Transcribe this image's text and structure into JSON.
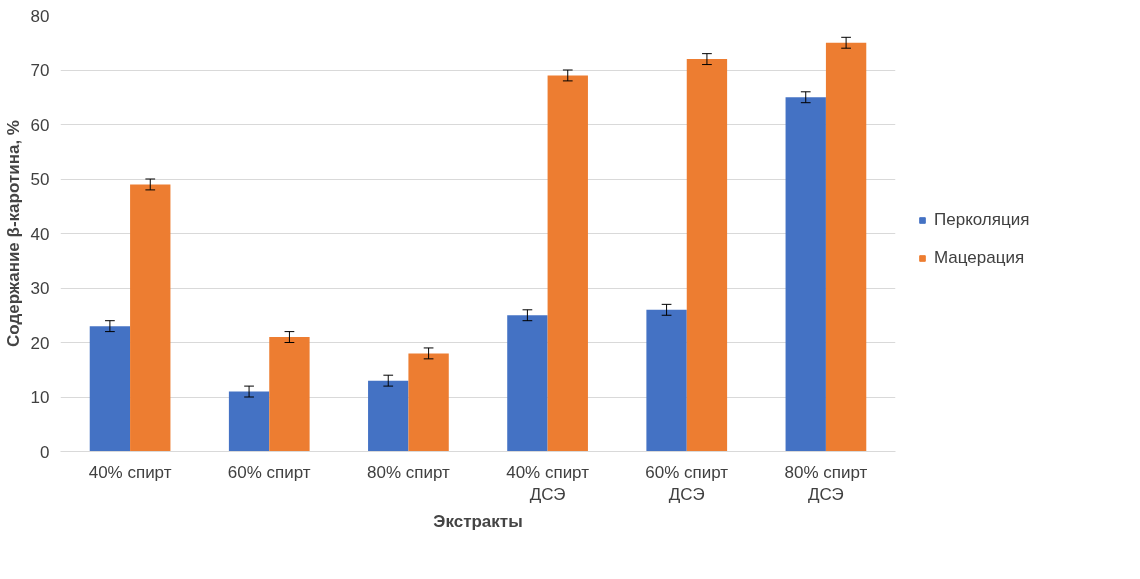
{
  "chart_data": {
    "type": "bar",
    "xlabel": "Экстракты",
    "ylabel": "Содержание β-каротина, %",
    "categories": [
      "40% спирт",
      "60% спирт",
      "80% спирт",
      "40% спирт\nДСЭ",
      "60% спирт\nДСЭ",
      "80% спирт\nДСЭ"
    ],
    "series": [
      {
        "name": "Перколяция",
        "color": "#4472c4",
        "values": [
          23,
          11,
          13,
          25,
          26,
          65
        ],
        "errors": [
          1,
          1,
          1,
          1,
          1,
          1
        ]
      },
      {
        "name": "Мацерация",
        "color": "#ed7d31",
        "values": [
          49,
          21,
          18,
          69,
          72,
          75
        ],
        "errors": [
          1,
          1,
          1,
          1,
          1,
          1
        ]
      }
    ],
    "ylim": [
      0,
      80
    ],
    "yticks": [
      0,
      10,
      20,
      30,
      40,
      50,
      60,
      70,
      80
    ],
    "grid": "y",
    "legend": "right"
  }
}
